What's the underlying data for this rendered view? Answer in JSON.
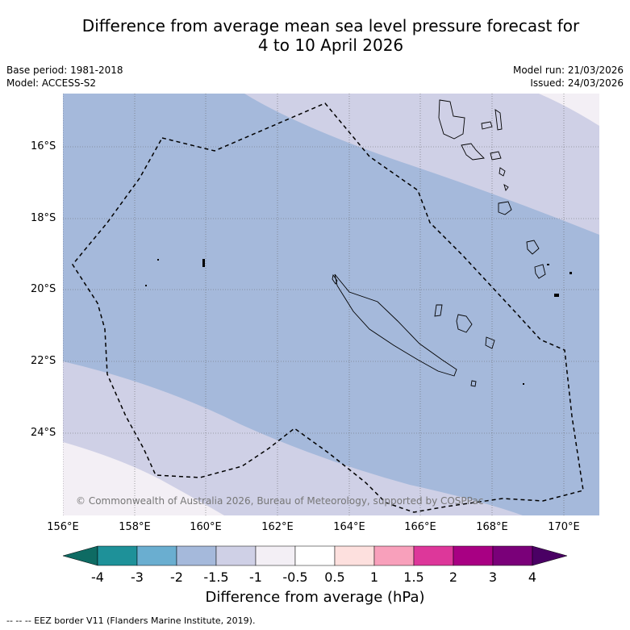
{
  "title": {
    "line1": "Difference from average mean sea level pressure forecast for",
    "line2": "4 to 10 April 2026"
  },
  "meta": {
    "base_period": "Base period: 1981-2018",
    "model": "Model: ACCESS-S2",
    "model_run": "Model run: 21/03/2026",
    "issued": "Issued: 24/03/2026"
  },
  "map": {
    "latitude_labels": [
      "16°S",
      "18°S",
      "20°S",
      "22°S",
      "24°S"
    ],
    "longitude_labels": [
      "156°E",
      "158°E",
      "160°E",
      "162°E",
      "164°E",
      "166°E",
      "168°E",
      "170°E"
    ],
    "copyright": "© Commonwealth of Australia 2026, Bureau of Meteorology, supported by COSPPac"
  },
  "colorbar": {
    "labels": [
      "-4",
      "-3",
      "-2",
      "-1.5",
      "-1",
      "-0.5",
      "0.5",
      "1",
      "1.5",
      "2",
      "3",
      "4"
    ],
    "colors": [
      "#0e6b63",
      "#1e9199",
      "#6aaed0",
      "#a5b9db",
      "#cfd0e6",
      "#f3eff5",
      "#ffffff",
      "#fde0de",
      "#f8a0bb",
      "#dd379a",
      "#a80083",
      "#7a0079",
      "#4a0064"
    ],
    "title": "Difference from average (hPa)"
  },
  "footnote": "-- -- -- EEZ border V11 (Flanders Marine Institute, 2019)."
}
